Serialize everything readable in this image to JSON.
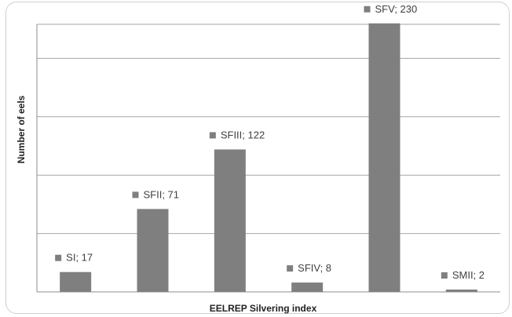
{
  "chart_data": {
    "type": "bar",
    "xlabel": "EELREP Silvering index",
    "ylabel": "Number of eels",
    "ylim": [
      0,
      250
    ],
    "grid": true,
    "colors": {
      "bar": "#7f7f7f",
      "grid": "#a6a6a6",
      "axis": "#8c8c8c"
    },
    "categories": [
      "SI",
      "SFII",
      "SFIII",
      "SFIV",
      "SFV",
      "SMII"
    ],
    "values": [
      17,
      71,
      122,
      8,
      230,
      2
    ],
    "data_labels": [
      "SI; 17",
      "SFII; 71",
      "SFIII; 122",
      "SFIV; 8",
      "SFV; 230",
      "SMII; 2"
    ]
  }
}
